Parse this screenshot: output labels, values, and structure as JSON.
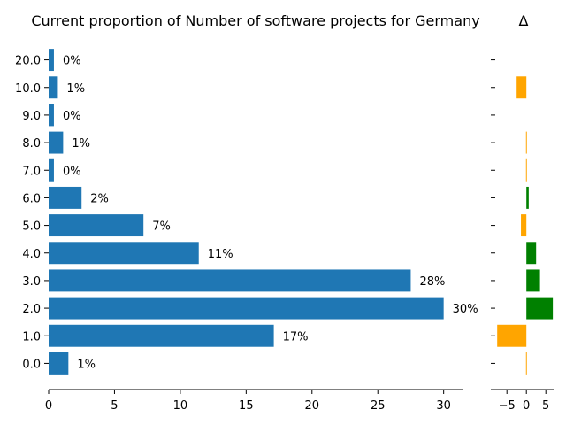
{
  "chart_data": [
    {
      "type": "bar",
      "orientation": "horizontal",
      "title": "Current proportion of Number of software projects for Germany",
      "xlabel": "",
      "ylabel": "",
      "categories": [
        "0.0",
        "1.0",
        "2.0",
        "3.0",
        "4.0",
        "5.0",
        "6.0",
        "7.0",
        "8.0",
        "9.0",
        "10.0",
        "20.0"
      ],
      "values": [
        1.5,
        17.1,
        30.0,
        27.5,
        11.4,
        7.2,
        2.5,
        0.4,
        1.1,
        0.4,
        0.7,
        0.4
      ],
      "data_labels": [
        "1%",
        "17%",
        "30%",
        "28%",
        "11%",
        "7%",
        "2%",
        "0%",
        "1%",
        "0%",
        "1%",
        "0%"
      ],
      "xlim": [
        0,
        31.5
      ],
      "xticks": [
        "0",
        "5",
        "10",
        "15",
        "20",
        "25",
        "30"
      ],
      "color": "#1f77b4",
      "grid": false
    },
    {
      "type": "bar",
      "orientation": "horizontal",
      "title": "Δ",
      "xlabel": "",
      "ylabel": "",
      "categories": [
        "0.0",
        "1.0",
        "2.0",
        "3.0",
        "4.0",
        "5.0",
        "6.0",
        "7.0",
        "8.0",
        "9.0",
        "10.0",
        "20.0"
      ],
      "values": [
        -0.1,
        -7.5,
        6.8,
        3.5,
        2.5,
        -1.4,
        0.6,
        -0.1,
        -0.1,
        0,
        -2.5,
        0
      ],
      "xlim": [
        -8,
        7
      ],
      "xticks": [
        "−5",
        "0",
        "5"
      ],
      "colors": {
        "positive": "#008000",
        "negative": "#ffa500"
      },
      "grid": false
    }
  ]
}
